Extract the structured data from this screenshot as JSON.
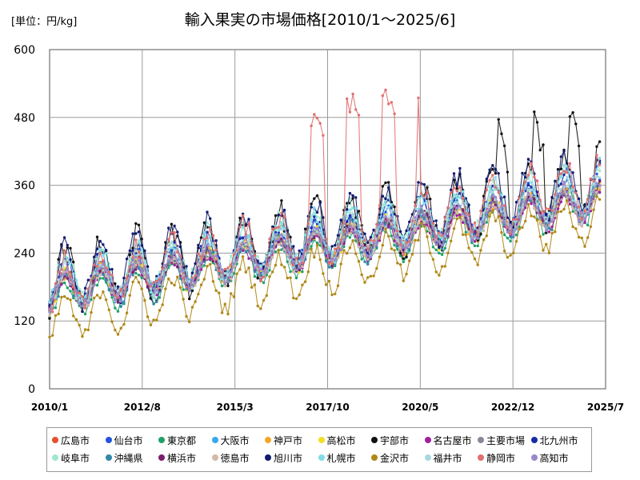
{
  "chart_data": {
    "type": "line",
    "title": "輸入果実の市場価格[2010/1～2025/6]",
    "unit_label": "[単位：円/kg]",
    "ylim": [
      0,
      600
    ],
    "y_ticks": [
      "0",
      "120",
      "240",
      "360",
      "480",
      "600"
    ],
    "x_ticks": [
      "2010/1",
      "2012/8",
      "2015/3",
      "2017/10",
      "2020/5",
      "2022/12",
      "2025/7"
    ],
    "grid": true,
    "legend_position": "bottom",
    "series": [
      {
        "name": "広島市",
        "color": "#e8502a",
        "base": 175,
        "trend": 10.5,
        "amp": 28,
        "noise": 10
      },
      {
        "name": "仙台市",
        "color": "#2255dd",
        "base": 178,
        "trend": 11.0,
        "amp": 32,
        "noise": 12
      },
      {
        "name": "東京都",
        "color": "#22a06b",
        "base": 155,
        "trend": 10.8,
        "amp": 30,
        "noise": 10
      },
      {
        "name": "大阪市",
        "color": "#33aaee",
        "base": 170,
        "trend": 10.6,
        "amp": 26,
        "noise": 9
      },
      {
        "name": "神戸市",
        "color": "#f5a623",
        "base": 172,
        "trend": 10.4,
        "amp": 28,
        "noise": 12
      },
      {
        "name": "高松市",
        "color": "#f0e020",
        "base": 168,
        "trend": 10.8,
        "amp": 30,
        "noise": 12
      },
      {
        "name": "宇部市",
        "color": "#111111",
        "base": 190,
        "trend": 11.5,
        "amp": 55,
        "noise": 22
      },
      {
        "name": "名古屋市",
        "color": "#a020a0",
        "base": 165,
        "trend": 10.4,
        "amp": 26,
        "noise": 9
      },
      {
        "name": "主要市場",
        "color": "#888899",
        "base": 170,
        "trend": 10.6,
        "amp": 25,
        "noise": 7
      },
      {
        "name": "北九州市",
        "color": "#1a2aa8",
        "base": 180,
        "trend": 11.2,
        "amp": 38,
        "noise": 14
      },
      {
        "name": "岐阜市",
        "color": "#9ee8cc",
        "base": 190,
        "trend": 11.0,
        "amp": 40,
        "noise": 16
      },
      {
        "name": "沖縄県",
        "color": "#3388aa",
        "base": 160,
        "trend": 11.5,
        "amp": 32,
        "noise": 12
      },
      {
        "name": "横浜市",
        "color": "#7a1f6e",
        "base": 168,
        "trend": 10.8,
        "amp": 27,
        "noise": 10
      },
      {
        "name": "徳島市",
        "color": "#d4b8a8",
        "base": 165,
        "trend": 10.6,
        "amp": 28,
        "noise": 11
      },
      {
        "name": "旭川市",
        "color": "#121a70",
        "base": 195,
        "trend": 11.3,
        "amp": 50,
        "noise": 20
      },
      {
        "name": "札幌市",
        "color": "#80dde8",
        "base": 185,
        "trend": 11.0,
        "amp": 40,
        "noise": 15
      },
      {
        "name": "金沢市",
        "color": "#b08818",
        "base": 120,
        "trend": 11.8,
        "amp": 38,
        "noise": 14
      },
      {
        "name": "福井市",
        "color": "#a8d8e0",
        "base": 175,
        "trend": 11.0,
        "amp": 35,
        "noise": 14
      },
      {
        "name": "静岡市",
        "color": "#e07070",
        "base": 180,
        "trend": 12.0,
        "amp": 45,
        "noise": 18
      },
      {
        "name": "高知市",
        "color": "#9a88cc",
        "base": 170,
        "trend": 10.8,
        "amp": 30,
        "noise": 12
      }
    ]
  }
}
